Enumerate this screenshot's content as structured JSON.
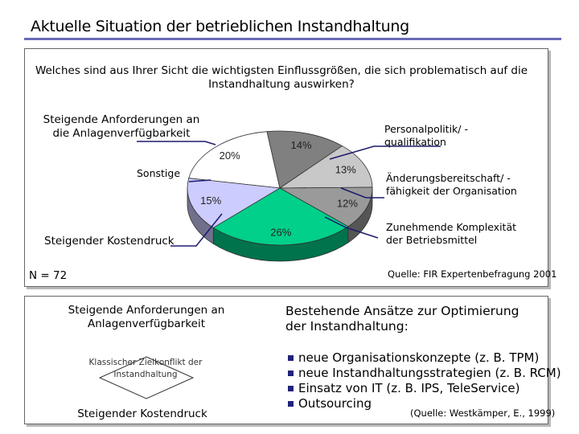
{
  "slide": {
    "title": "Aktuelle Situation der betrieblichen Instandhaltung",
    "question": "Welches sind aus Ihrer Sicht die wichtigsten Einflussgrößen, die sich problematisch auf die Instandhaltung auswirken?",
    "sample_size": "N = 72",
    "source": "Quelle: FIR Expertenbefragung 2001"
  },
  "chart_data": {
    "type": "pie",
    "title": "",
    "slices": [
      {
        "label": "Steigende Anforderungen an die Anlagenverfügbarkeit",
        "value": 20,
        "display": "20%",
        "color": "#ffffff"
      },
      {
        "label": "Personalpolitik/ -qualifikation",
        "value": 14,
        "display": "14%",
        "color": "#808080"
      },
      {
        "label": "Änderungsbereitschaft/ -fähigkeit der Organisation",
        "value": 13,
        "display": "13%",
        "color": "#c8c8c8"
      },
      {
        "label": "Zunehmende Komplexität der Betriebsmittel",
        "value": 12,
        "display": "12%",
        "color": "#9a9a9a"
      },
      {
        "label": "Steigender Kostendruck",
        "value": 26,
        "display": "26%",
        "color": "#00d08a"
      },
      {
        "label": "Sonstige",
        "value": 15,
        "display": "15%",
        "color": "#ccccff"
      }
    ],
    "callouts": {
      "anforderungen": "Steigende Anforderungen an die Anlagenverfügbarkeit",
      "personal": "Personalpolitik/ -qualifikation",
      "aenderung": "Änderungsbereitschaft/ -fähigkeit der Organisation",
      "komplexitaet": "Zunehmende Komplexität der Betriebsmittel",
      "kosten": "Steigender Kostendruck",
      "sonstige": "Sonstige"
    }
  },
  "bottom": {
    "left_top": "Steigende Anforderungen an Anlagenverfügbarkeit",
    "conflict": "Klassischer Zielkonflikt der Instandhaltung",
    "left_bottom": "Steigender Kostendruck",
    "heading": "Bestehende Ansätze zur Optimierung der Instandhaltung:",
    "bullets": [
      "neue Organisationskonzepte (z. B. TPM)",
      "neue Instandhaltungsstrategien (z. B. RCM)",
      "Einsatz von IT (z. B. IPS, TeleService)",
      "Outsourcing"
    ],
    "citation": "(Quelle: Westkämper, E., 1999)",
    "bullet_color": "#22227a"
  }
}
